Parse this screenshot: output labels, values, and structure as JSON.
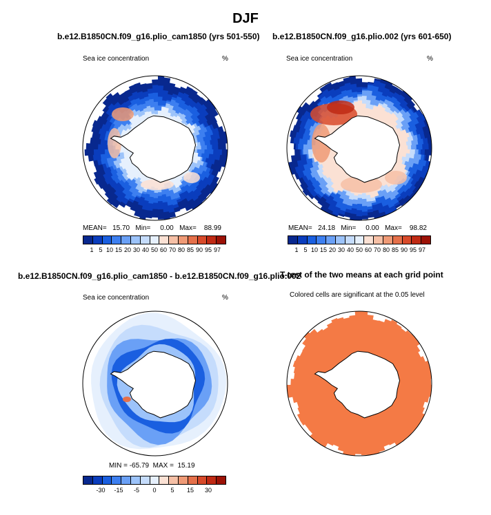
{
  "title": "DJF",
  "panels": [
    {
      "title": "b.e12.B1850CN.f09_g16.plio_cam1850 (yrs 501-550)",
      "left_label": "Sea ice concentration",
      "right_label": "%",
      "stats": "MEAN=   15.70   Min=     0.00   Max=    88.99",
      "colorbar_labels": [
        "1",
        "5",
        "10",
        "15",
        "20",
        "30",
        "40",
        "50",
        "60",
        "70",
        "80",
        "85",
        "90",
        "95",
        "97"
      ]
    },
    {
      "title": "b.e12.B1850CN.f09_g16.plio.002 (yrs 601-650)",
      "left_label": "Sea ice concentration",
      "right_label": "%",
      "stats": "MEAN=   24.18   Min=     0.00   Max=    98.82",
      "colorbar_labels": [
        "1",
        "5",
        "10",
        "15",
        "20",
        "30",
        "40",
        "50",
        "60",
        "70",
        "80",
        "85",
        "90",
        "95",
        "97"
      ]
    },
    {
      "title": "b.e12.B1850CN.f09_g16.plio_cam1850 - b.e12.B1850CN.f09_g16.plio.002",
      "left_label": "Sea ice concentration",
      "right_label": "%",
      "stats": "MIN = -65.79  MAX =  15.19",
      "colorbar_labels": [
        "-30",
        "-15",
        "-5",
        "0",
        "5",
        "15",
        "30"
      ]
    },
    {
      "title": "T-test of the two means at each grid point",
      "subtitle": "Colored cells are significant at the 0.05 level"
    }
  ],
  "colors": {
    "seq": [
      "#08288e",
      "#0a3dbd",
      "#1a5fe0",
      "#3d7ff0",
      "#6aa0f6",
      "#9cc3fa",
      "#c5dcfc",
      "#e6f0fd",
      "#fbe1d4",
      "#f6c0a6",
      "#ef9a76",
      "#e5704a",
      "#d84a2a",
      "#c02a14",
      "#9c1206"
    ],
    "diff": [
      "#08288e",
      "#0a3dbd",
      "#1a5fe0",
      "#3d7ff0",
      "#6aa0f6",
      "#9cc3fa",
      "#c5dcfc",
      "#e6f0fd",
      "#fbe1d4",
      "#f6c0a6",
      "#ef9a76",
      "#e5704a",
      "#d84a2a",
      "#c02a14",
      "#9c1206"
    ],
    "significant": "#f47a45"
  }
}
